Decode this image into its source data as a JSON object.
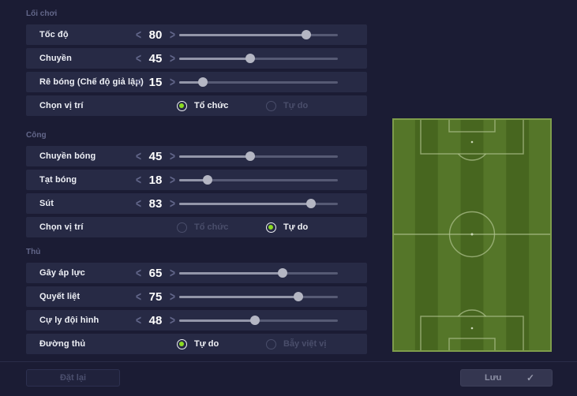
{
  "colors": {
    "background": "#1b1c34",
    "row_background": "#272a45",
    "accent_green": "#8bdb21",
    "pitch_light_stripe": "#557629",
    "pitch_dark_stripe": "#47661f",
    "pitch_border": "#7e9d4b",
    "pitch_line": "#b2c492"
  },
  "icons": {
    "decrease": "<",
    "increase": ">",
    "check": "✓"
  },
  "sections": [
    {
      "title": "Lối chơi",
      "rows": [
        {
          "type": "slider",
          "label": "Tốc độ",
          "value": 80
        },
        {
          "type": "slider",
          "label": "Chuyền",
          "value": 45
        },
        {
          "type": "slider",
          "label": "Rê bóng (Chế độ giả lập)",
          "value": 15
        },
        {
          "type": "radio",
          "label": "Chọn vị trí",
          "options": [
            {
              "label": "Tổ chức",
              "selected": true
            },
            {
              "label": "Tự do",
              "selected": false
            }
          ]
        }
      ]
    },
    {
      "title": "Công",
      "rows": [
        {
          "type": "slider",
          "label": "Chuyền bóng",
          "value": 45
        },
        {
          "type": "slider",
          "label": "Tạt bóng",
          "value": 18
        },
        {
          "type": "slider",
          "label": "Sút",
          "value": 83
        },
        {
          "type": "radio",
          "label": "Chọn vị trí",
          "options": [
            {
              "label": "Tổ chức",
              "selected": false
            },
            {
              "label": "Tự do",
              "selected": true
            }
          ]
        }
      ]
    },
    {
      "title": "Thủ",
      "rows": [
        {
          "type": "slider",
          "label": "Gây áp lực",
          "value": 65
        },
        {
          "type": "slider",
          "label": "Quyết liệt",
          "value": 75
        },
        {
          "type": "slider",
          "label": "Cự ly đội hình",
          "value": 48
        },
        {
          "type": "radio",
          "label": "Đường thủ",
          "options": [
            {
              "label": "Tự do",
              "selected": true
            },
            {
              "label": "Bẫy việt vị",
              "selected": false
            }
          ]
        }
      ]
    }
  ],
  "footer": {
    "reset_label": "Đặt lại",
    "save_label": "Lưu"
  }
}
